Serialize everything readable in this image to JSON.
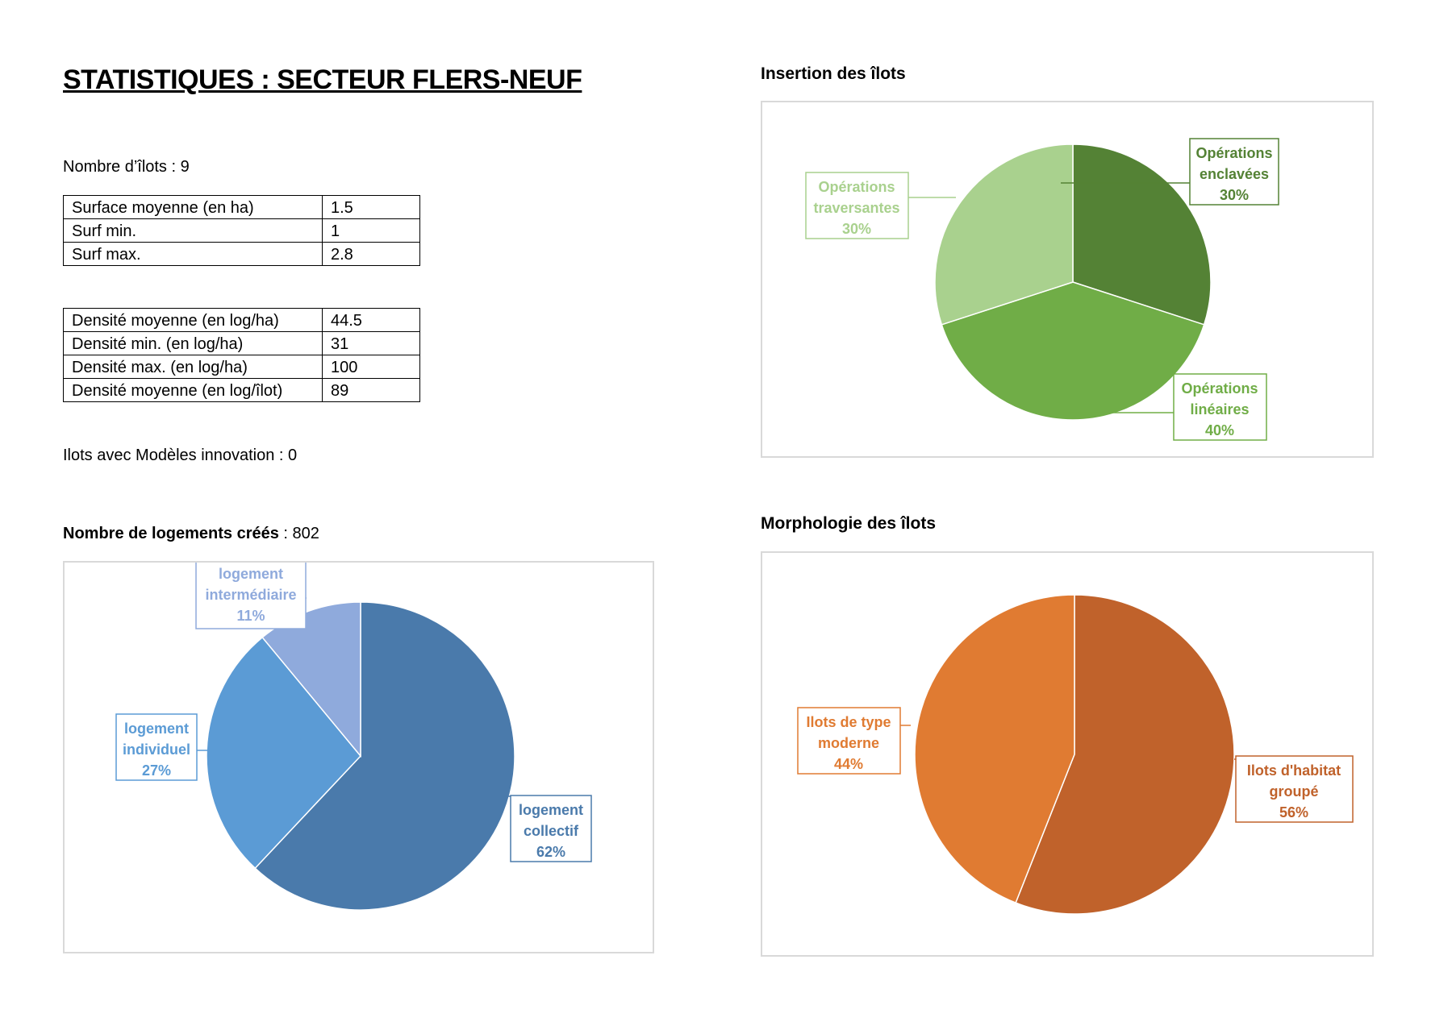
{
  "title": "STATISTIQUES : SECTEUR FLERS-NEUF",
  "nombre_ilots": "Nombre d’îlots : 9",
  "surface_table": [
    [
      "Surface moyenne (en ha)",
      "1.5"
    ],
    [
      "Surf min.",
      "1"
    ],
    [
      "Surf max.",
      "2.8"
    ]
  ],
  "densite_table": [
    [
      "Densité moyenne (en log/ha)",
      "44.5"
    ],
    [
      "Densité min. (en log/ha)",
      "31"
    ],
    [
      "Densité max. (en log/ha)",
      "100"
    ],
    [
      "Densité moyenne (en log/îlot)",
      "89"
    ]
  ],
  "innovation": "Ilots avec Modèles innovation : 0",
  "logements": {
    "label": "Nombre de logements créés",
    "value": " : 802"
  },
  "insertion_title": "Insertion des îlots",
  "morphologie_title": "Morphologie des îlots",
  "chart_data": [
    {
      "type": "pie",
      "title": "Insertion des îlots",
      "categories": [
        "Opérations enclavées",
        "Opérations linéaires",
        "Opérations traversantes"
      ],
      "values": [
        30,
        40,
        30
      ],
      "colors": [
        "#548235",
        "#70ad47",
        "#a9d18e"
      ],
      "label_lines": [
        [
          "Opérations",
          "enclavées",
          "30%"
        ],
        [
          "Opérations",
          "linéaires",
          "40%"
        ],
        [
          "Opérations",
          "traversantes",
          "30%"
        ]
      ]
    },
    {
      "type": "pie",
      "title": "Nombre de logements créés",
      "categories": [
        "logement collectif",
        "logement individuel",
        "logement intermédiaire"
      ],
      "values": [
        62,
        27,
        11
      ],
      "colors": [
        "#4a7aab",
        "#5b9bd5",
        "#8faadc"
      ],
      "label_lines": [
        [
          "logement",
          "collectif",
          "62%"
        ],
        [
          "logement",
          "individuel",
          "27%"
        ],
        [
          "logement",
          "intermédiaire",
          "11%"
        ]
      ]
    },
    {
      "type": "pie",
      "title": "Morphologie des îlots",
      "categories": [
        "Ilots d'habitat groupé",
        "Ilots de type moderne"
      ],
      "values": [
        56,
        44
      ],
      "colors": [
        "#c0622b",
        "#e07b32"
      ],
      "label_lines": [
        [
          "Ilots d'habitat",
          "groupé",
          "56%"
        ],
        [
          "Ilots de type",
          "moderne",
          "44%"
        ]
      ]
    }
  ]
}
